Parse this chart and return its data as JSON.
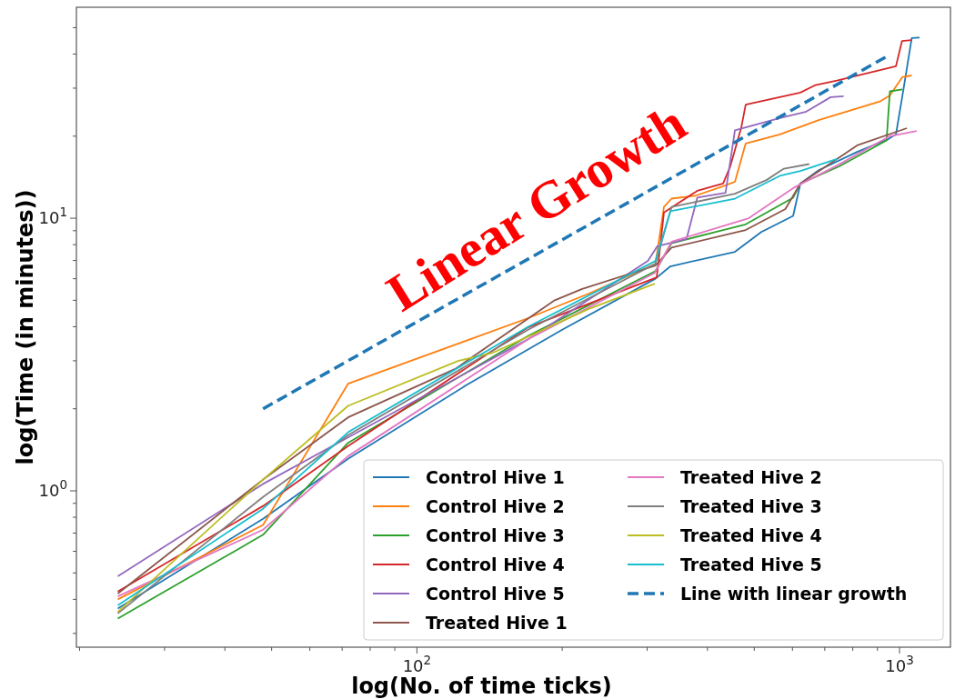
{
  "chart_data": {
    "type": "line",
    "xlabel": "log(No. of time ticks)",
    "ylabel": "log(Time (in minutes))",
    "annotations": [
      "Linear Growth"
    ],
    "log": "xy",
    "grid": false,
    "legend": "bottom right",
    "xlim": [
      19.7,
      1275
    ],
    "ylim": [
      0.267,
      59.4
    ],
    "xticks": [
      {
        "value": 20,
        "label": null
      },
      {
        "value": 30,
        "label": null
      },
      {
        "value": 40,
        "label": null
      },
      {
        "value": 50,
        "label": null
      },
      {
        "value": 60,
        "label": null
      },
      {
        "value": 70,
        "label": null
      },
      {
        "value": 80,
        "label": null
      },
      {
        "value": 90,
        "label": null
      },
      {
        "value": 100,
        "label": "10$^{2}$"
      },
      {
        "value": 200,
        "label": null
      },
      {
        "value": 300,
        "label": null
      },
      {
        "value": 400,
        "label": null
      },
      {
        "value": 500,
        "label": null
      },
      {
        "value": 600,
        "label": null
      },
      {
        "value": 700,
        "label": null
      },
      {
        "value": 800,
        "label": null
      },
      {
        "value": 900,
        "label": null
      },
      {
        "value": 1000,
        "label": "10$^{3}$"
      }
    ],
    "yticks": [
      {
        "value": 0.3,
        "label": null
      },
      {
        "value": 0.4,
        "label": null
      },
      {
        "value": 0.5,
        "label": null
      },
      {
        "value": 0.6,
        "label": null
      },
      {
        "value": 0.7,
        "label": null
      },
      {
        "value": 0.8,
        "label": null
      },
      {
        "value": 0.9,
        "label": null
      },
      {
        "value": 1,
        "label": "10$^{0}$"
      },
      {
        "value": 2,
        "label": null
      },
      {
        "value": 3,
        "label": null
      },
      {
        "value": 4,
        "label": null
      },
      {
        "value": 5,
        "label": null
      },
      {
        "value": 6,
        "label": null
      },
      {
        "value": 7,
        "label": null
      },
      {
        "value": 8,
        "label": null
      },
      {
        "value": 9,
        "label": null
      },
      {
        "value": 10,
        "label": "10$^{1}$"
      },
      {
        "value": 20,
        "label": null
      },
      {
        "value": 30,
        "label": null
      },
      {
        "value": 40,
        "label": null
      },
      {
        "value": 50,
        "label": null
      }
    ],
    "series": [
      {
        "name": "Control Hive 1",
        "color": "#1f77b4",
        "x": [
          24,
          48,
          72,
          127,
          200,
          312,
          335,
          456,
          517,
          602,
          623,
          680,
          817,
          948,
          983,
          1020,
          1060,
          1100
        ],
        "values": [
          0.37,
          0.79,
          1.31,
          2.45,
          3.9,
          6.0,
          6.66,
          7.53,
          8.9,
          10.2,
          13.4,
          15.0,
          17.5,
          19.5,
          20.3,
          30,
          45.8,
          46
        ]
      },
      {
        "name": "Control Hive 2",
        "color": "#ff7f0e",
        "x": [
          24,
          48,
          72,
          170,
          227,
          312,
          325,
          337,
          378,
          431,
          456,
          480,
          565,
          680,
          910,
          955,
          1013,
          1060
        ],
        "values": [
          0.4,
          0.75,
          2.47,
          4.3,
          5.29,
          6.8,
          11.0,
          11.8,
          12.1,
          13.1,
          13.6,
          18.8,
          20.3,
          22.9,
          26.8,
          28.2,
          32.9,
          33.4
        ]
      },
      {
        "name": "Control Hive 3",
        "color": "#2ca02c",
        "x": [
          24,
          48,
          72,
          170,
          312,
          337,
          480,
          602,
          623,
          750,
          940,
          955,
          1013
        ],
        "values": [
          0.34,
          0.69,
          1.5,
          3.7,
          6.4,
          8.1,
          9.5,
          11.9,
          13.4,
          15.5,
          19.3,
          29.2,
          29.7
        ]
      },
      {
        "name": "Control Hive 4",
        "color": "#d62728",
        "x": [
          24,
          48,
          72,
          170,
          314,
          325,
          381,
          431,
          446,
          470,
          480,
          623,
          670,
          742,
          983,
          1012,
          1058
        ],
        "values": [
          0.427,
          0.88,
          1.46,
          3.98,
          6.07,
          10.5,
          12.6,
          13.4,
          15.5,
          21.5,
          26.1,
          28.9,
          30.8,
          32,
          36.1,
          44.7,
          45
        ]
      },
      {
        "name": "Control Hive 5",
        "color": "#9467bd",
        "x": [
          24,
          48,
          72,
          170,
          301,
          315,
          362,
          381,
          436,
          456,
          565,
          641,
          720,
          766
        ],
        "values": [
          0.486,
          1.06,
          1.57,
          3.6,
          6.97,
          7.9,
          8.4,
          11.9,
          12.4,
          21,
          23.3,
          24.6,
          27.8,
          28
        ]
      },
      {
        "name": "Treated Hive 1",
        "color": "#8c564b",
        "x": [
          24,
          48,
          72,
          120,
          193,
          220,
          312,
          337,
          480,
          580,
          623,
          817,
          1036
        ],
        "values": [
          0.42,
          1.1,
          1.86,
          2.8,
          5.0,
          5.5,
          6.7,
          7.8,
          9.05,
          10.8,
          13.4,
          18.5,
          21.4
        ]
      },
      {
        "name": "Treated Hive 2",
        "color": "#e377c2",
        "x": [
          24,
          48,
          72,
          170,
          311,
          337,
          487,
          602,
          742,
          955,
          1085
        ],
        "values": [
          0.41,
          0.72,
          1.34,
          3.6,
          6.3,
          8.2,
          10.0,
          12.9,
          15.6,
          20,
          20.9
        ]
      },
      {
        "name": "Treated Hive 3",
        "color": "#7f7f7f",
        "x": [
          24,
          48,
          72,
          170,
          312,
          337,
          456,
          530,
          576,
          650
        ],
        "values": [
          0.355,
          0.95,
          1.6,
          3.9,
          6.8,
          11.0,
          12.3,
          13.8,
          15.2,
          15.8
        ]
      },
      {
        "name": "Treated Hive 4",
        "color": "#bcbd22",
        "x": [
          24,
          48,
          72,
          122,
          143,
          227,
          311
        ],
        "values": [
          0.36,
          1.1,
          2.05,
          3.0,
          3.2,
          4.65,
          5.75
        ]
      },
      {
        "name": "Treated Hive 5",
        "color": "#17becf",
        "x": [
          24,
          48,
          72,
          170,
          312,
          335,
          456,
          565,
          623,
          742
        ],
        "values": [
          0.38,
          0.86,
          1.64,
          4.0,
          6.97,
          10.6,
          11.8,
          14.3,
          14.9,
          16.5
        ]
      },
      {
        "name": "Line with linear growth",
        "color": "#1f77b4",
        "line_style": "dashed",
        "x": [
          48,
          950
        ],
        "values": [
          2,
          39.6
        ]
      }
    ]
  }
}
